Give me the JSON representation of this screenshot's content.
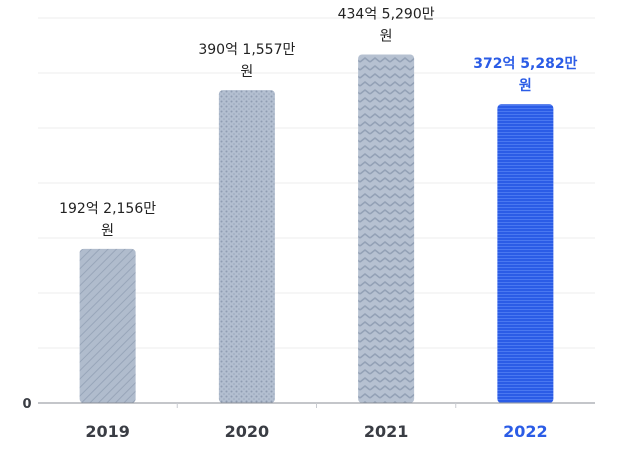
{
  "chart_data": {
    "type": "bar",
    "categories": [
      "2019",
      "2020",
      "2021",
      "2022"
    ],
    "values": [
      192.2156,
      390.1557,
      434.529,
      372.5282
    ],
    "value_labels": [
      [
        "192억 2,156만",
        "원"
      ],
      [
        "390억 1,557만",
        "원"
      ],
      [
        "434억 5,290만",
        "원"
      ],
      [
        "372억 5,282만",
        "원"
      ]
    ],
    "value_unit": "억 원",
    "highlight_index": 3,
    "y_tick_labels": [
      "0"
    ],
    "ylim": [
      0,
      480
    ],
    "grid": true,
    "legend": "none",
    "title": "",
    "xlabel": "",
    "ylabel": ""
  },
  "colors": {
    "bar_base": "#b0bccd",
    "bar_pattern": "#8f9db2",
    "highlight": "#2b5ce6",
    "highlight_stripe": "#4a78f0",
    "grid": "#ededed",
    "axis": "#8a8e96",
    "text": "#3a3d44"
  }
}
